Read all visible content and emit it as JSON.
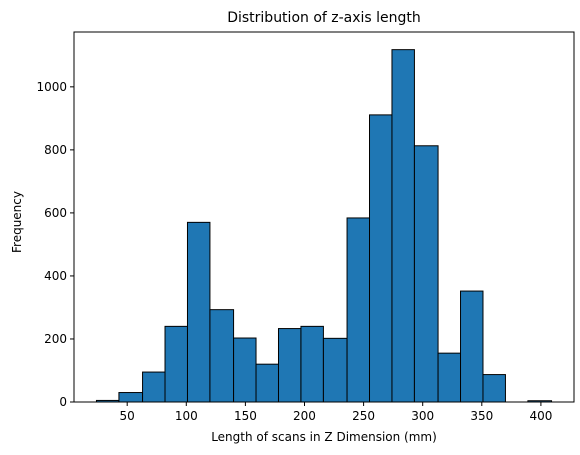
{
  "chart_data": {
    "type": "bar",
    "title": "Distribution of z-axis length",
    "xlabel": "Length of scans in Z Dimension (mm)",
    "ylabel": "Frequency",
    "bins": [
      {
        "start": 24,
        "end": 43,
        "count": 5
      },
      {
        "start": 43,
        "end": 63,
        "count": 30
      },
      {
        "start": 63,
        "end": 82,
        "count": 95
      },
      {
        "start": 82,
        "end": 101,
        "count": 240
      },
      {
        "start": 101,
        "end": 120,
        "count": 570
      },
      {
        "start": 120,
        "end": 140,
        "count": 293
      },
      {
        "start": 140,
        "end": 159,
        "count": 203
      },
      {
        "start": 159,
        "end": 178,
        "count": 120
      },
      {
        "start": 178,
        "end": 197,
        "count": 233
      },
      {
        "start": 197,
        "end": 216,
        "count": 240
      },
      {
        "start": 216,
        "end": 236,
        "count": 202
      },
      {
        "start": 236,
        "end": 255,
        "count": 584
      },
      {
        "start": 255,
        "end": 274,
        "count": 911
      },
      {
        "start": 274,
        "end": 293,
        "count": 1118
      },
      {
        "start": 293,
        "end": 313,
        "count": 813
      },
      {
        "start": 313,
        "end": 332,
        "count": 155
      },
      {
        "start": 332,
        "end": 351,
        "count": 352
      },
      {
        "start": 351,
        "end": 370,
        "count": 87
      },
      {
        "start": 370,
        "end": 389,
        "count": 0
      },
      {
        "start": 389,
        "end": 409,
        "count": 4
      }
    ],
    "xlim": [
      5,
      428
    ],
    "ylim": [
      0,
      1174
    ],
    "xticks": [
      50,
      100,
      150,
      200,
      250,
      300,
      350,
      400
    ],
    "yticks": [
      0,
      200,
      400,
      600,
      800,
      1000
    ],
    "bar_color": "#1f77b4",
    "edge_color": "#000000",
    "grid": false
  }
}
